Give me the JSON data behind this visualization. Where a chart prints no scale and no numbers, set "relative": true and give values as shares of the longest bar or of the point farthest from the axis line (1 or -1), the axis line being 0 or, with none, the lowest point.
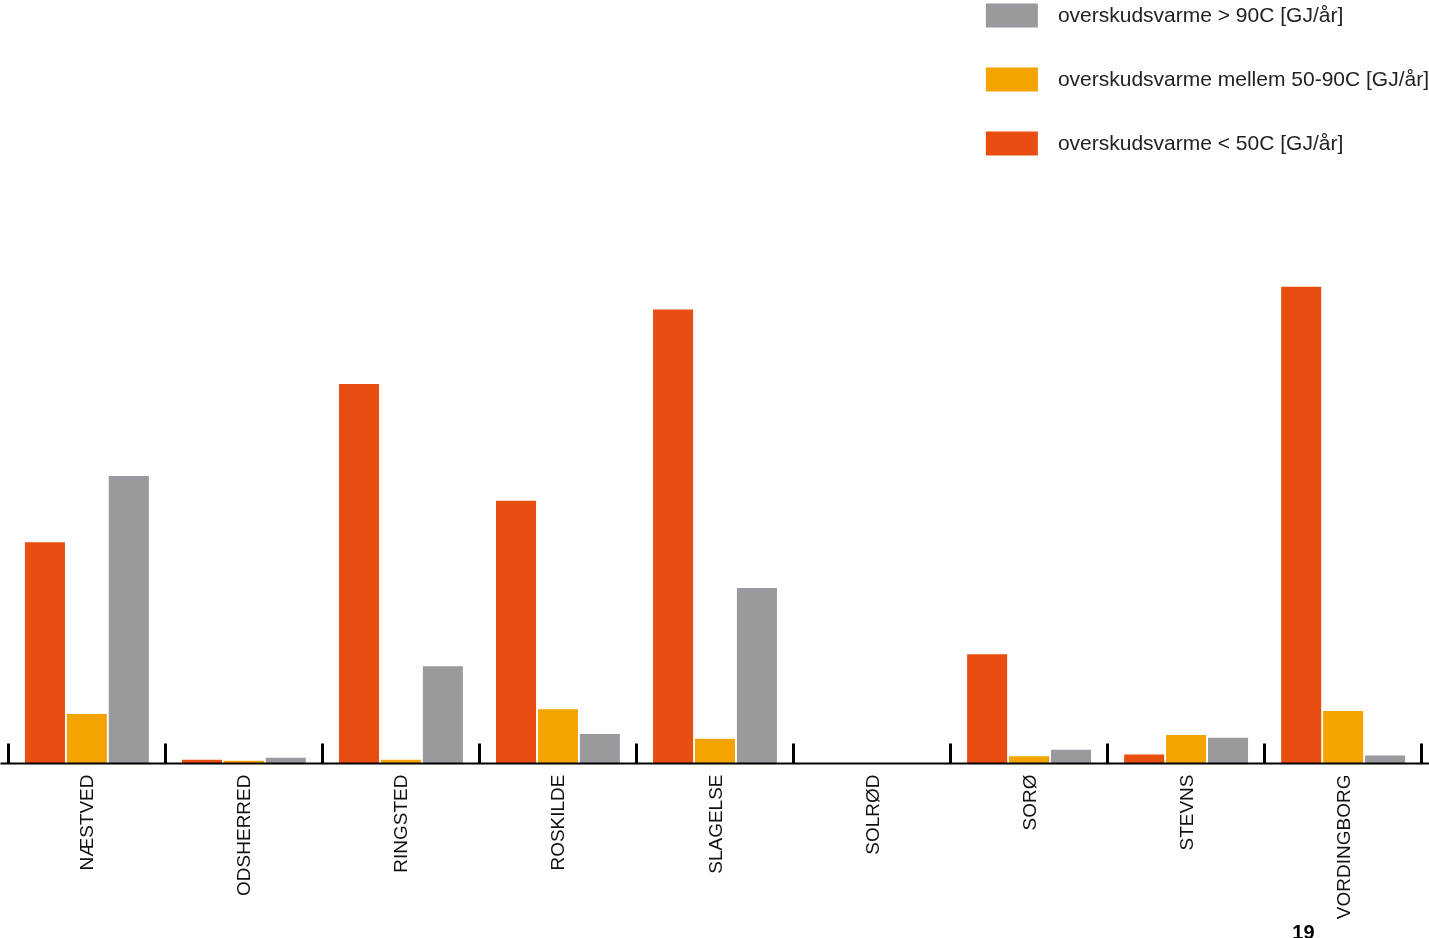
{
  "chart_data": {
    "type": "bar",
    "relative": true,
    "tick_labels": "x",
    "legend": "top right",
    "categories": [
      "NÆSTVED",
      "ODSHERRED",
      "RINGSTED",
      "ROSKILDE",
      "SLAGELSE",
      "SOLRØD",
      "SORØ",
      "STEVNS",
      "VORDINGBORG"
    ],
    "series": [
      {
        "name": "overskudsvarme > 90C [GJ/år]",
        "color": "#9a999e",
        "values": [
          0.603,
          0.012,
          0.204,
          0.062,
          0.368,
          null,
          0.029,
          0.054,
          0.017
        ]
      },
      {
        "name": "overskudsvarme mellem 50-90C [GJ/år]",
        "color": "#f5a300",
        "values": [
          0.104,
          0.006,
          0.008,
          0.114,
          0.052,
          null,
          0.015,
          0.06,
          0.11
        ]
      },
      {
        "name": "overskudsvarme < 50C [GJ/år]",
        "color": "#e84e0f",
        "values": [
          0.464,
          0.008,
          0.796,
          0.551,
          0.952,
          null,
          0.229,
          0.019,
          1
        ]
      }
    ],
    "annotations": [
      "19"
    ]
  }
}
